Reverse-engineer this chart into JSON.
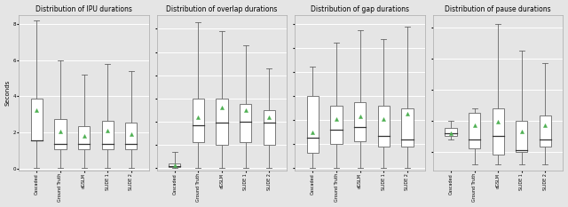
{
  "titles": [
    "Distribution of IPU durations",
    "Distribution of overlap durations",
    "Distribution of gap durations",
    "Distribution of pause durations"
  ],
  "ylabel": "Seconds",
  "categories": [
    "Cascaded",
    "Ground Truth",
    "dGSLM",
    "SLIDE 1",
    "SLIDE 2"
  ],
  "background_color": "#e5e5e5",
  "box_color": "white",
  "whisker_color": "#666666",
  "median_color": "#333333",
  "mean_marker_color": "#4caf50",
  "ipu": {
    "whisker_low": [
      0.03,
      0.03,
      0.03,
      0.03,
      0.03
    ],
    "q1": [
      1.55,
      1.05,
      1.05,
      1.05,
      1.05
    ],
    "median": [
      1.55,
      1.35,
      1.35,
      1.35,
      1.35
    ],
    "q3": [
      3.85,
      2.75,
      2.35,
      2.65,
      2.55
    ],
    "whisker_high": [
      8.2,
      6.0,
      5.2,
      5.8,
      5.4
    ],
    "mean": [
      3.25,
      2.05,
      1.78,
      2.1,
      1.88
    ],
    "ylim": [
      -0.1,
      8.5
    ],
    "yticks": [
      0,
      2,
      4,
      6,
      8
    ]
  },
  "overlap": {
    "whisker_low": [
      0.0,
      0.0,
      0.0,
      0.0,
      0.0
    ],
    "q1": [
      0.01,
      0.22,
      0.2,
      0.22,
      0.2
    ],
    "median": [
      0.015,
      0.37,
      0.39,
      0.4,
      0.39
    ],
    "q3": [
      0.04,
      0.6,
      0.6,
      0.55,
      0.5
    ],
    "whisker_high": [
      0.14,
      1.26,
      1.18,
      1.06,
      0.86
    ],
    "mean": [
      0.025,
      0.44,
      0.52,
      0.5,
      0.44
    ],
    "ylim": [
      -0.02,
      1.32
    ],
    "yticks": [
      0.0,
      0.2,
      0.4,
      0.6,
      0.8,
      1.0,
      1.2
    ]
  },
  "gap": {
    "whisker_low": [
      0.0,
      0.0,
      0.0,
      0.0,
      0.0
    ],
    "q1": [
      0.13,
      0.2,
      0.22,
      0.18,
      0.18
    ],
    "median": [
      0.25,
      0.32,
      0.34,
      0.27,
      0.24
    ],
    "q3": [
      0.6,
      0.52,
      0.55,
      0.52,
      0.5
    ],
    "whisker_high": [
      0.85,
      1.05,
      1.15,
      1.08,
      1.18
    ],
    "mean": [
      0.3,
      0.41,
      0.43,
      0.41,
      0.45
    ],
    "ylim": [
      -0.02,
      1.28
    ],
    "yticks": [
      0.0,
      0.2,
      0.4,
      0.6,
      0.8,
      1.0,
      1.2
    ]
  },
  "pause": {
    "whisker_low": [
      0.48,
      0.32,
      0.32,
      0.32,
      0.32
    ],
    "q1": [
      0.5,
      0.42,
      0.38,
      0.4,
      0.43
    ],
    "median": [
      0.52,
      0.48,
      0.5,
      0.41,
      0.48
    ],
    "q3": [
      0.55,
      0.65,
      0.68,
      0.6,
      0.63
    ],
    "whisker_high": [
      0.6,
      0.68,
      1.22,
      1.05,
      0.97
    ],
    "mean": [
      0.52,
      0.57,
      0.59,
      0.53,
      0.57
    ],
    "ylim": [
      0.28,
      1.28
    ],
    "yticks": [
      0.4,
      0.6,
      0.8,
      1.0,
      1.2
    ]
  }
}
